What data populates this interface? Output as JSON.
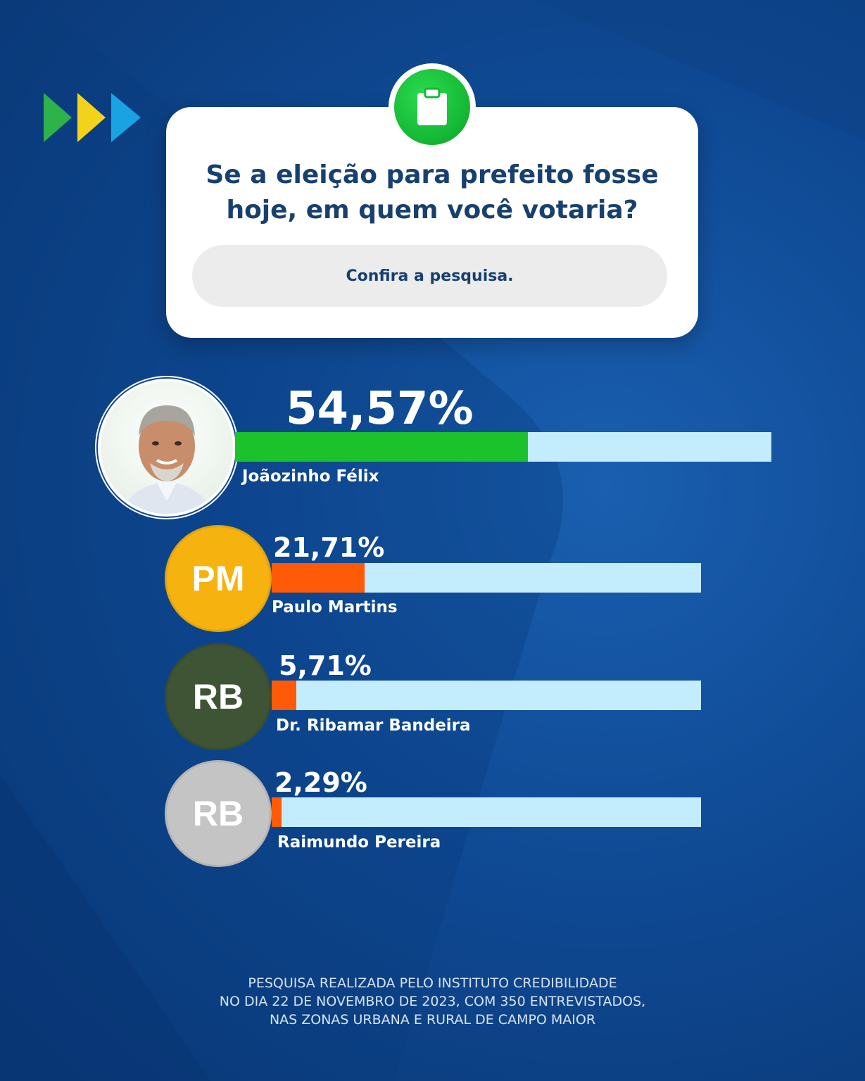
{
  "card": {
    "question_line1": "Se a eleição para prefeito fosse",
    "question_line2": "hoje, em quem você votaria?",
    "cta_label": "Confira a pesquisa.",
    "badge_icon": "clipboard-icon"
  },
  "chart_data": {
    "type": "bar",
    "orientation": "horizontal",
    "unit": "%",
    "xlim": [
      0,
      100
    ],
    "categories": [
      "Joãozinho Félix",
      "Paulo Martins",
      "Dr. Ribamar Bandeira",
      "Raimundo Pereira"
    ],
    "values": [
      54.57,
      21.71,
      5.71,
      2.29
    ],
    "value_labels": [
      "54,57%",
      "21,71%",
      "5,71%",
      "2,29%"
    ],
    "avatars": [
      "photo",
      "PM",
      "RB",
      "RB"
    ],
    "avatar_colors": [
      "#ffffff",
      "#f6b20f",
      "#3f5434",
      "#c4c4c4"
    ],
    "bar_colors": [
      "#1cc22b",
      "#ff5a07",
      "#ff5a07",
      "#ff5a07"
    ],
    "track_color": "#c3ecfd"
  },
  "footer": {
    "line1": "PESQUISA REALIZADA PELO INSTITUTO CREDIBILIDADE",
    "line2": "NO DIA 22 DE NOVEMBRO DE 2023, COM 350 ENTREVISTADOS,",
    "line3": "NAS ZONAS URBANA E RURAL DE CAMPO MAIOR"
  },
  "logo": {
    "icon": "triple-arrow-logo-icon",
    "colors": [
      "#2db34a",
      "#f2d21b",
      "#1aa3e3"
    ]
  }
}
